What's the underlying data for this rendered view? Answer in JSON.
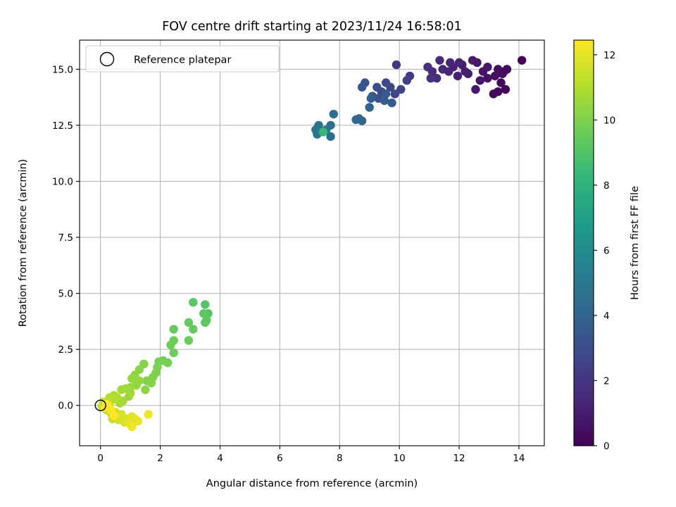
{
  "chart_data": {
    "type": "scatter",
    "title": "FOV centre drift starting at 2023/11/24 16:58:01",
    "xlabel": "Angular distance from reference (arcmin)",
    "ylabel": "Rotation from reference (arcmin)",
    "xlim": [
      -0.7,
      14.85
    ],
    "ylim": [
      -1.8,
      16.3
    ],
    "x_ticks": [
      0,
      2,
      4,
      6,
      8,
      10,
      12,
      14
    ],
    "y_ticks": [
      0.0,
      2.5,
      5.0,
      7.5,
      10.0,
      12.5,
      15.0
    ],
    "x_tick_labels": [
      "0",
      "2",
      "4",
      "6",
      "8",
      "10",
      "12",
      "14"
    ],
    "y_tick_labels": [
      "0.0",
      "2.5",
      "5.0",
      "7.5",
      "10.0",
      "12.5",
      "15.0"
    ],
    "grid": true,
    "legend": {
      "placement": "top-left",
      "entries": [
        "Reference platepar"
      ]
    },
    "colormap": "viridis",
    "colorbar": {
      "label": "Hours from first FF file",
      "range": [
        0,
        12.45
      ],
      "ticks": [
        0,
        2,
        4,
        6,
        8,
        10,
        12
      ],
      "tick_labels": [
        "0",
        "2",
        "4",
        "6",
        "8",
        "10",
        "12"
      ]
    },
    "reference_point": {
      "x": 0,
      "y": 0,
      "label": "Reference platepar"
    },
    "series": [
      {
        "name": "FOV centre drift",
        "points": [
          [
            14.1,
            15.4,
            0.05
          ],
          [
            13.55,
            14.1,
            0.1
          ],
          [
            13.15,
            13.9,
            0.2
          ],
          [
            13.3,
            14.0,
            0.25
          ],
          [
            13.4,
            14.4,
            0.3
          ],
          [
            13.5,
            14.9,
            0.35
          ],
          [
            13.6,
            15.0,
            0.4
          ],
          [
            13.45,
            14.8,
            0.45
          ],
          [
            13.3,
            15.0,
            0.5
          ],
          [
            13.2,
            14.7,
            0.55
          ],
          [
            12.95,
            14.6,
            0.6
          ],
          [
            12.8,
            14.9,
            0.65
          ],
          [
            12.7,
            14.5,
            0.7
          ],
          [
            12.55,
            14.1,
            0.75
          ],
          [
            12.95,
            15.1,
            0.8
          ],
          [
            12.6,
            15.3,
            0.85
          ],
          [
            12.45,
            15.4,
            0.9
          ],
          [
            12.3,
            14.8,
            0.95
          ],
          [
            12.1,
            15.2,
            1.0
          ],
          [
            12.2,
            14.9,
            1.05
          ],
          [
            11.95,
            14.7,
            1.1
          ],
          [
            11.8,
            15.1,
            1.15
          ],
          [
            12.0,
            15.3,
            1.2
          ],
          [
            11.7,
            15.3,
            1.25
          ],
          [
            11.65,
            14.9,
            1.3
          ],
          [
            11.45,
            15.0,
            1.4
          ],
          [
            11.35,
            15.4,
            1.5
          ],
          [
            11.25,
            14.6,
            1.55
          ],
          [
            11.1,
            14.9,
            1.6
          ],
          [
            10.95,
            15.1,
            1.7
          ],
          [
            11.05,
            14.6,
            1.8
          ],
          [
            9.9,
            15.2,
            2.0
          ],
          [
            10.35,
            14.7,
            2.2
          ],
          [
            10.25,
            14.5,
            2.4
          ],
          [
            10.05,
            14.1,
            2.5
          ],
          [
            9.85,
            13.9,
            2.6
          ],
          [
            9.7,
            14.2,
            2.7
          ],
          [
            9.55,
            14.4,
            2.8
          ],
          [
            9.4,
            14.0,
            2.9
          ],
          [
            9.25,
            14.2,
            3.0
          ],
          [
            9.3,
            13.7,
            3.1
          ],
          [
            9.1,
            13.8,
            3.2
          ],
          [
            8.85,
            14.4,
            3.3
          ],
          [
            8.75,
            14.2,
            3.4
          ],
          [
            9.55,
            13.9,
            3.5
          ],
          [
            9.75,
            13.5,
            3.6
          ],
          [
            9.5,
            13.6,
            3.7
          ],
          [
            9.05,
            13.7,
            3.8
          ],
          [
            9.0,
            13.3,
            3.9
          ],
          [
            8.65,
            12.8,
            4.0
          ],
          [
            8.75,
            12.7,
            4.1
          ],
          [
            8.55,
            12.75,
            4.2
          ],
          [
            7.8,
            13.0,
            4.4
          ],
          [
            7.7,
            12.5,
            4.5
          ],
          [
            7.7,
            12.0,
            4.6
          ],
          [
            7.55,
            12.3,
            4.7
          ],
          [
            7.3,
            12.5,
            4.8
          ],
          [
            7.2,
            12.3,
            4.85
          ],
          [
            7.25,
            12.1,
            4.9
          ],
          [
            7.45,
            12.2,
            8.3
          ],
          [
            3.5,
            4.5,
            9.1
          ],
          [
            3.6,
            4.1,
            9.15
          ],
          [
            3.1,
            4.6,
            9.2
          ],
          [
            3.45,
            4.1,
            9.25
          ],
          [
            3.55,
            3.8,
            9.3
          ],
          [
            3.5,
            3.7,
            9.35
          ],
          [
            2.95,
            3.7,
            9.4
          ],
          [
            3.1,
            3.4,
            9.45
          ],
          [
            2.45,
            3.4,
            9.5
          ],
          [
            2.95,
            2.9,
            9.55
          ],
          [
            2.45,
            2.9,
            9.6
          ],
          [
            2.35,
            2.7,
            9.65
          ],
          [
            2.45,
            2.35,
            9.7
          ],
          [
            2.25,
            1.9,
            9.75
          ],
          [
            2.1,
            2.0,
            9.8
          ],
          [
            1.95,
            1.95,
            9.85
          ],
          [
            1.9,
            1.7,
            9.9
          ],
          [
            1.85,
            1.45,
            9.95
          ],
          [
            1.75,
            1.25,
            10.0
          ],
          [
            1.55,
            1.1,
            10.05
          ],
          [
            1.45,
            1.85,
            10.1
          ],
          [
            1.7,
            1.0,
            10.15
          ],
          [
            1.3,
            1.6,
            10.2
          ],
          [
            1.5,
            0.7,
            10.25
          ],
          [
            1.15,
            1.35,
            10.3
          ],
          [
            1.2,
            0.9,
            10.35
          ],
          [
            1.3,
            1.1,
            10.4
          ],
          [
            1.05,
            1.2,
            10.45
          ],
          [
            1.0,
            0.8,
            10.5
          ],
          [
            0.95,
            0.4,
            10.55
          ],
          [
            0.85,
            0.75,
            10.6
          ],
          [
            1.0,
            0.55,
            10.65
          ],
          [
            0.7,
            0.7,
            10.7
          ],
          [
            0.75,
            0.2,
            10.75
          ],
          [
            0.65,
            0.1,
            10.8
          ],
          [
            0.55,
            0.35,
            10.85
          ],
          [
            0.45,
            0.45,
            10.9
          ],
          [
            0.5,
            0.3,
            10.95
          ],
          [
            0.4,
            0.25,
            11.0
          ],
          [
            0.3,
            0.35,
            11.05
          ],
          [
            0.25,
            -0.1,
            11.1
          ],
          [
            0.3,
            0.1,
            11.15
          ],
          [
            0.2,
            -0.2,
            11.2
          ],
          [
            0.1,
            0.15,
            11.25
          ],
          [
            0.05,
            -0.05,
            11.3
          ],
          [
            0.15,
            0.0,
            11.35
          ],
          [
            0.35,
            -0.35,
            11.4
          ],
          [
            0.4,
            -0.6,
            11.45
          ],
          [
            0.5,
            -0.3,
            11.5
          ],
          [
            0.55,
            -0.5,
            11.55
          ],
          [
            0.6,
            -0.65,
            11.6
          ],
          [
            0.7,
            -0.4,
            11.65
          ],
          [
            0.75,
            -0.55,
            11.7
          ],
          [
            0.8,
            -0.75,
            11.75
          ],
          [
            0.9,
            -0.6,
            11.8
          ],
          [
            0.95,
            -0.75,
            11.85
          ],
          [
            1.05,
            -0.5,
            11.9
          ],
          [
            1.1,
            -0.75,
            11.95
          ],
          [
            1.15,
            -0.6,
            12.0
          ],
          [
            1.25,
            -0.7,
            12.05
          ],
          [
            1.0,
            -0.85,
            12.1
          ],
          [
            1.05,
            -0.95,
            12.15
          ],
          [
            1.6,
            -0.4,
            12.2
          ],
          [
            0.2,
            0.05,
            12.25
          ],
          [
            0.15,
            -0.1,
            12.3
          ],
          [
            0.35,
            -0.2,
            12.35
          ],
          [
            0.25,
            0.0,
            12.4
          ],
          [
            0.45,
            -0.45,
            12.42
          ]
        ]
      }
    ]
  }
}
